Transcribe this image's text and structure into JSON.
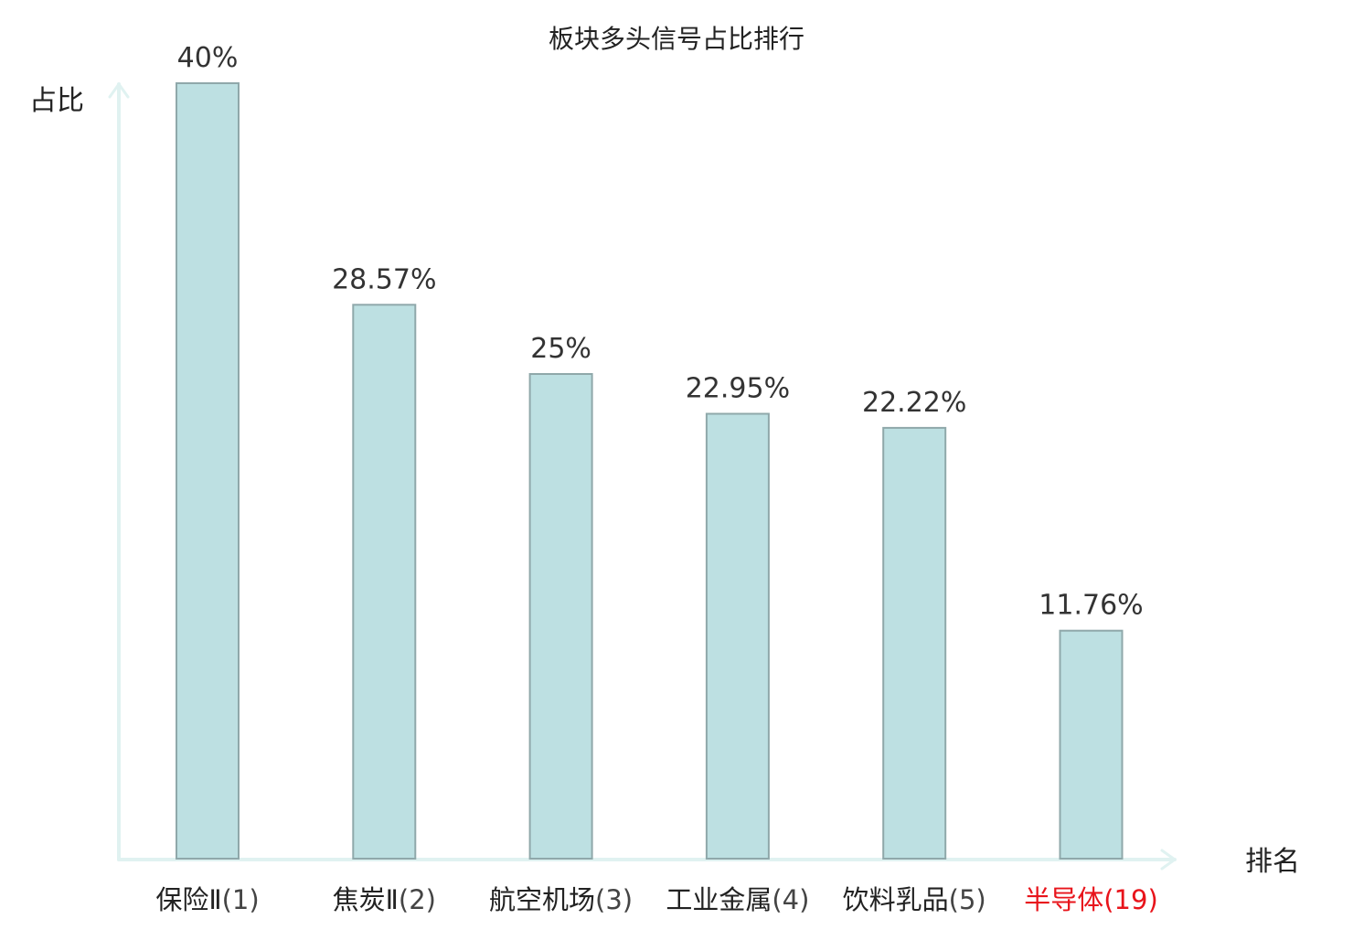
{
  "chart_data": {
    "type": "bar",
    "title": "板块多头信号占比排行",
    "ylabel": "占比",
    "xlabel": "排名",
    "ylim": [
      0,
      40
    ],
    "grid": false,
    "legend": "none",
    "categories": [
      "保险Ⅱ(1)",
      "焦炭Ⅱ(2)",
      "航空机场(3)",
      "工业金属(4)",
      "饮料乳品(5)",
      "半导体(19)"
    ],
    "category_names": [
      "保险Ⅱ",
      "焦炭Ⅱ",
      "航空机场",
      "工业金属",
      "饮料乳品",
      "半导体"
    ],
    "category_ranks": [
      "(1)",
      "(2)",
      "(3)",
      "(4)",
      "(5)",
      "(19)"
    ],
    "values": [
      40,
      28.57,
      25,
      22.95,
      22.22,
      11.76
    ],
    "value_labels": [
      "40%",
      "28.57%",
      "25%",
      "22.95%",
      "22.22%",
      "11.76%"
    ],
    "highlight_index": 5,
    "colors": {
      "bar_fill": "#bde0e2",
      "bar_stroke": "#8fa8aa",
      "axis": "#e0f2f1",
      "label": "#222222",
      "rank": "#444444",
      "highlight": "#e8141b"
    }
  }
}
